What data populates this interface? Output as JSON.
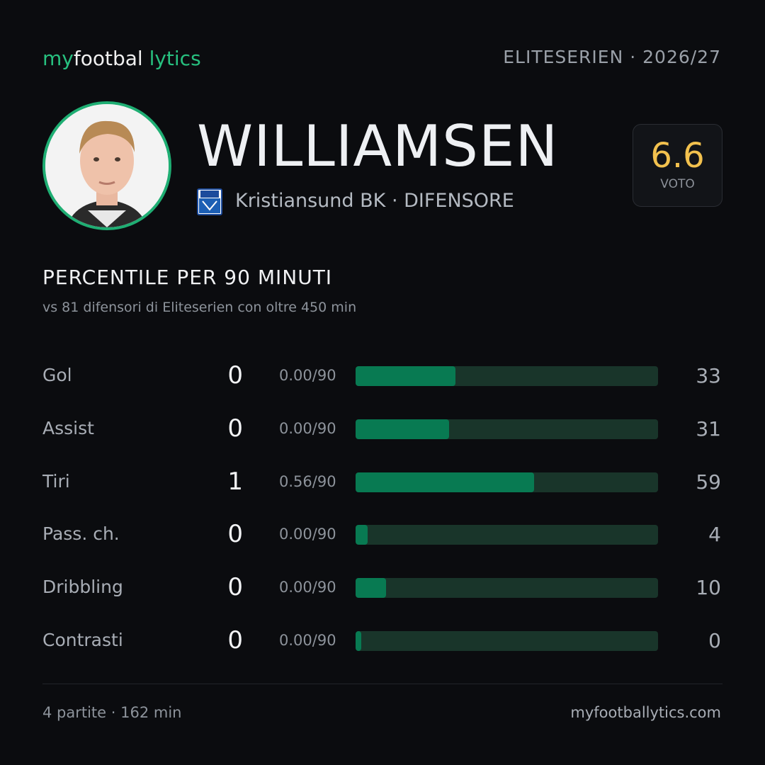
{
  "header": {
    "logo": {
      "part1": "my",
      "part2": "footbal",
      "part3": "lytics"
    },
    "league": "ELITESERIEN · 2026/27"
  },
  "player": {
    "name": "WILLIAMSEN",
    "subtitle": "Kristiansund BK · DIFENSORE",
    "rating": 6.6,
    "rating_label": "VOTO"
  },
  "section": {
    "title": "PERCENTILE PER 90 MINUTI",
    "subtitle": "vs 81 difensori di Eliteserien con oltre 450 min"
  },
  "rows": [
    {
      "label": "Gol",
      "count": 0,
      "per90": "0.00/90",
      "percentile": 33
    },
    {
      "label": "Assist",
      "count": 0,
      "per90": "0.00/90",
      "percentile": 31
    },
    {
      "label": "Tiri",
      "count": 1,
      "per90": "0.56/90",
      "percentile": 59
    },
    {
      "label": "Pass. ch.",
      "count": 0,
      "per90": "0.00/90",
      "percentile": 4
    },
    {
      "label": "Dribbling",
      "count": 0,
      "per90": "0.00/90",
      "percentile": 10
    },
    {
      "label": "Contrasti",
      "count": 0,
      "per90": "0.00/90",
      "percentile": 0
    }
  ],
  "footer": {
    "left": "4 partite · 162 min",
    "right": "myfootballytics.com"
  }
}
